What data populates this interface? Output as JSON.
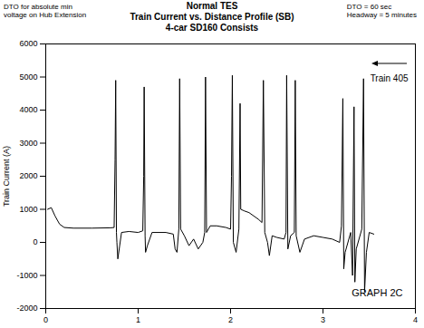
{
  "chart_data": {
    "type": "line",
    "title": "Normal TES",
    "subtitle": [
      "Train Current vs. Distance Profile (SB)",
      "4-car SD160 Consists"
    ],
    "notes": {
      "left": [
        "DTO for absolute min",
        "voltage on Hub Extension"
      ],
      "right": [
        "DTO = 60 sec",
        "Headway = 5 minutes"
      ],
      "train": "Train 405",
      "graph": "GRAPH 2C"
    },
    "ylabel": "Train Current (A)",
    "x": [
      0.02,
      0.06,
      0.1,
      0.15,
      0.2,
      0.3,
      0.5,
      0.7,
      0.74,
      0.75,
      0.757,
      0.765,
      0.77,
      0.78,
      0.8,
      0.82,
      0.9,
      1.0,
      1.05,
      1.06,
      1.065,
      1.075,
      1.08,
      1.1,
      1.15,
      1.3,
      1.38,
      1.4,
      1.42,
      1.44,
      1.449,
      1.46,
      1.5,
      1.55,
      1.6,
      1.65,
      1.7,
      1.72,
      1.729,
      1.74,
      1.78,
      1.85,
      1.95,
      2.0,
      2.01,
      2.019,
      2.03,
      2.06,
      2.09,
      2.103,
      2.11,
      2.15,
      2.2,
      2.25,
      2.3,
      2.34,
      2.355,
      2.37,
      2.4,
      2.42,
      2.45,
      2.5,
      2.58,
      2.6,
      2.607,
      2.62,
      2.65,
      2.69,
      2.7,
      2.71,
      2.75,
      2.8,
      2.9,
      3.0,
      3.1,
      3.18,
      3.2,
      3.215,
      3.225,
      3.24,
      3.3,
      3.32,
      3.336,
      3.345,
      3.36,
      3.42,
      3.439,
      3.45,
      3.47,
      3.5,
      3.55
    ],
    "values": [
      1000,
      1050,
      800,
      550,
      450,
      430,
      430,
      440,
      450,
      2500,
      4900,
      300,
      0,
      -500,
      -100,
      300,
      330,
      300,
      350,
      2000,
      4700,
      200,
      -300,
      -100,
      300,
      300,
      250,
      -200,
      -300,
      400,
      4950,
      400,
      200,
      -100,
      100,
      -200,
      0,
      300,
      5000,
      300,
      500,
      500,
      450,
      400,
      2000,
      5050,
      0,
      -300,
      400,
      4200,
      1000,
      950,
      900,
      800,
      700,
      600,
      4900,
      300,
      0,
      -400,
      200,
      150,
      100,
      300,
      5050,
      -200,
      200,
      300,
      4900,
      200,
      -300,
      100,
      200,
      150,
      100,
      0,
      500,
      4350,
      -800,
      -300,
      300,
      -1000,
      4100,
      -1200,
      -200,
      400,
      4950,
      -1500,
      -300,
      300,
      250
    ],
    "color": "#000000",
    "xlim": [
      0,
      4
    ],
    "xticks": [
      0,
      1,
      2,
      3,
      4
    ],
    "ylim": [
      -2000,
      6000
    ],
    "yticks": [
      -2000,
      -1000,
      0,
      1000,
      2000,
      3000,
      4000,
      5000,
      6000
    ],
    "grid": false
  }
}
